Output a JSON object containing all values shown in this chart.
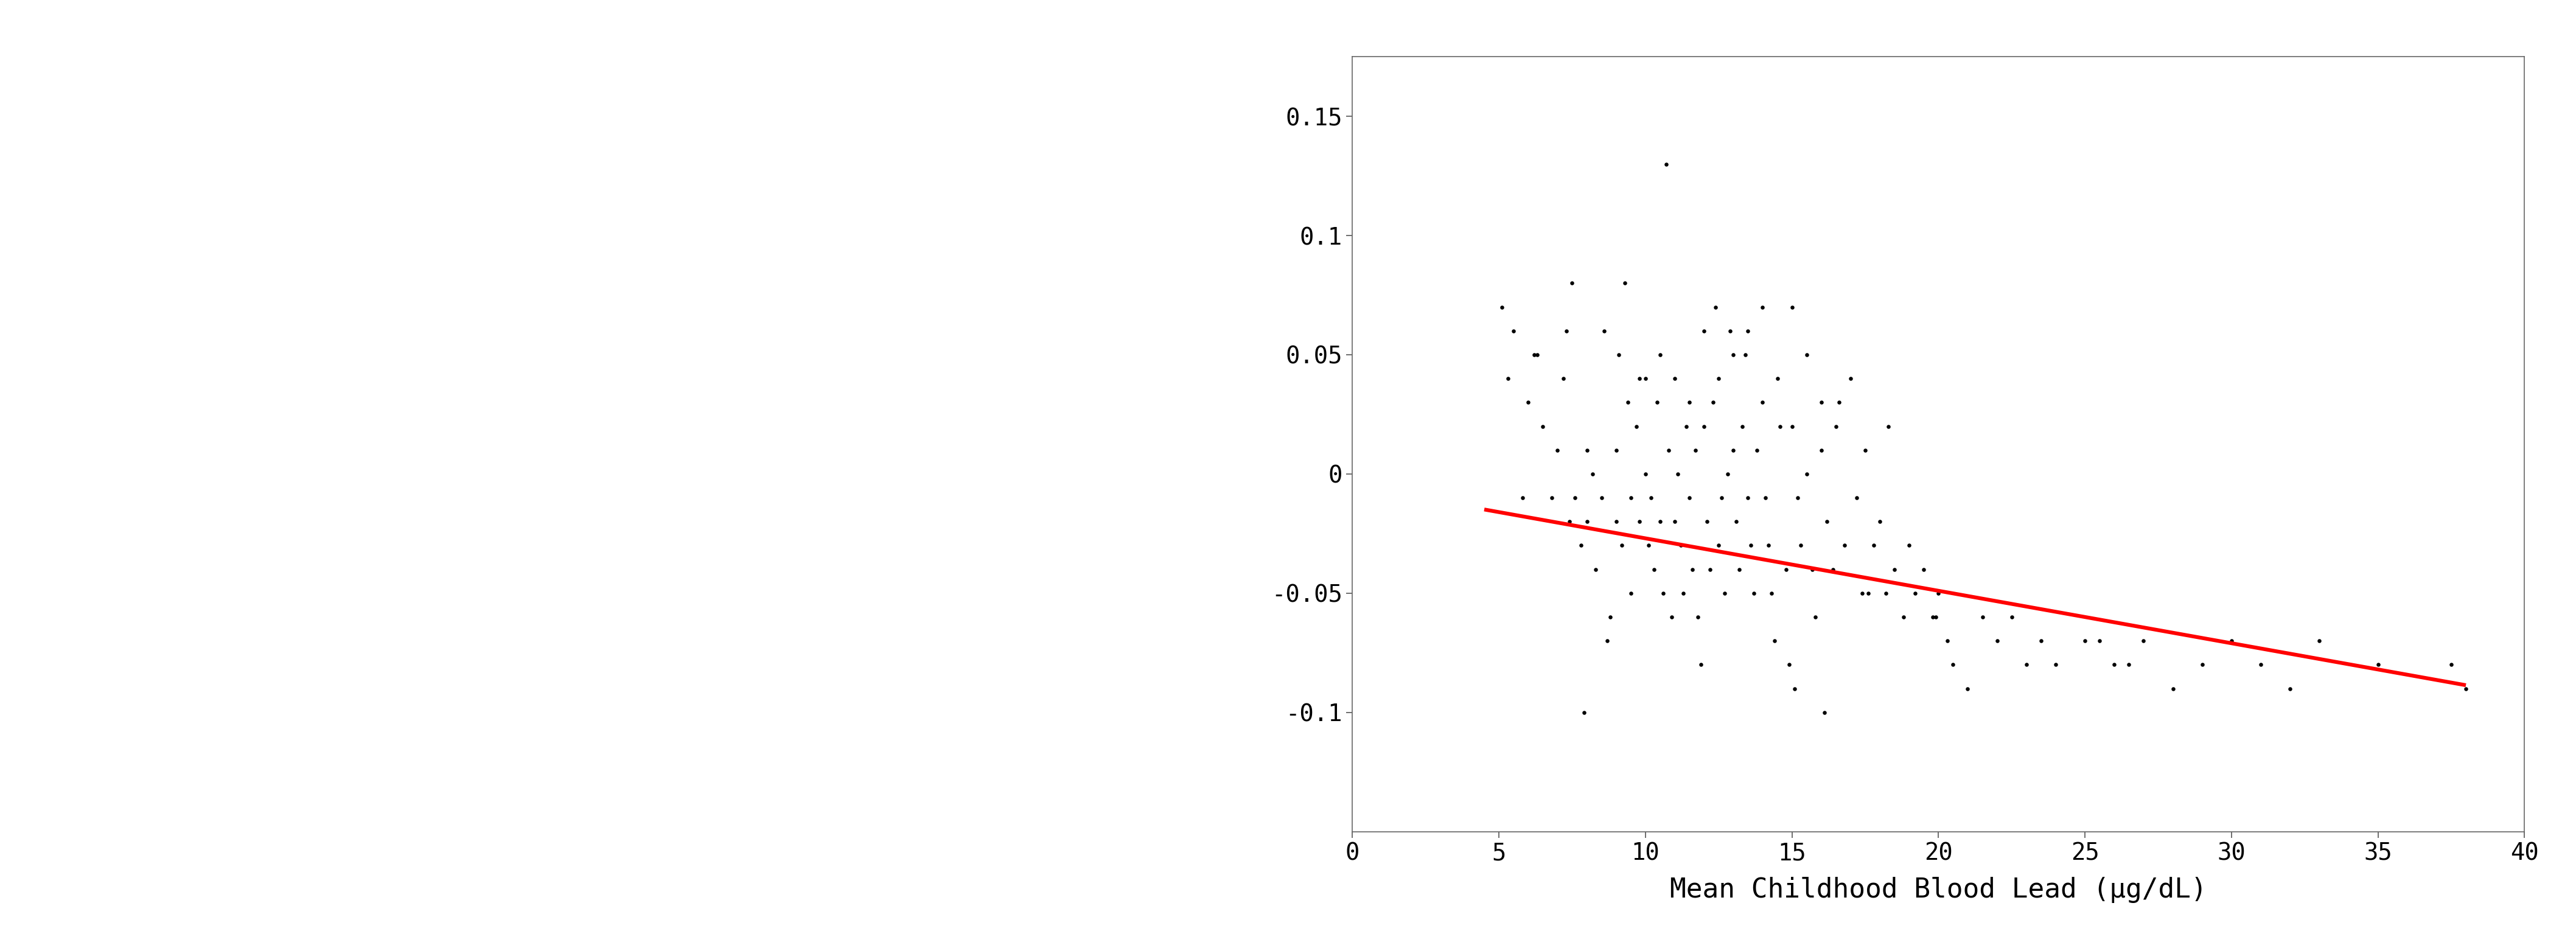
{
  "xlabel": "Mean Childhood Blood Lead (μg/dL)",
  "xlim": [
    0,
    40
  ],
  "ylim": [
    -0.15,
    0.175
  ],
  "xticks": [
    0,
    5,
    10,
    15,
    20,
    25,
    30,
    35,
    40
  ],
  "yticks": [
    -0.1,
    -0.05,
    0,
    0.05,
    0.1,
    0.15
  ],
  "scatter_color": "#000000",
  "line_color": "#ff0000",
  "bg_color": "#ffffff",
  "dot_size": 22,
  "line_width": 4.5,
  "line_x_start": 4.5,
  "line_x_end": 38.0,
  "line_intercept": -0.005,
  "line_slope": -0.0022,
  "font_family": "DejaVu Sans Mono",
  "tick_fontsize": 28,
  "label_fontsize": 32,
  "random_seed": 7,
  "scatter_x": [
    5.1,
    5.3,
    5.5,
    5.8,
    6.0,
    6.2,
    6.5,
    6.8,
    7.0,
    7.2,
    7.4,
    7.5,
    7.6,
    7.8,
    8.0,
    8.0,
    8.2,
    8.3,
    8.5,
    8.6,
    8.8,
    9.0,
    9.0,
    9.1,
    9.2,
    9.4,
    9.5,
    9.5,
    9.7,
    9.8,
    10.0,
    10.0,
    10.1,
    10.2,
    10.3,
    10.4,
    10.5,
    10.5,
    10.6,
    10.8,
    11.0,
    11.0,
    11.1,
    11.2,
    11.3,
    11.4,
    11.5,
    11.5,
    11.6,
    11.7,
    11.8,
    12.0,
    12.0,
    12.1,
    12.2,
    12.3,
    12.5,
    12.5,
    12.6,
    12.7,
    12.8,
    13.0,
    13.0,
    13.1,
    13.2,
    13.3,
    13.5,
    13.5,
    13.6,
    13.7,
    13.8,
    14.0,
    14.0,
    14.1,
    14.2,
    14.3,
    14.5,
    14.6,
    14.8,
    15.0,
    15.0,
    15.2,
    15.3,
    15.5,
    15.5,
    15.7,
    15.8,
    16.0,
    16.0,
    16.2,
    16.4,
    16.5,
    16.8,
    17.0,
    17.2,
    17.4,
    17.5,
    17.8,
    18.0,
    18.2,
    18.5,
    18.8,
    19.0,
    19.2,
    19.5,
    19.8,
    20.0,
    20.3,
    20.5,
    21.0,
    21.5,
    22.0,
    22.5,
    23.0,
    23.5,
    24.0,
    25.0,
    25.5,
    26.0,
    26.5,
    27.0,
    28.0,
    29.0,
    30.0,
    31.0,
    32.0,
    33.0,
    35.0,
    37.5,
    38.0,
    9.3,
    10.7,
    11.9,
    12.4,
    13.4,
    14.4,
    15.1,
    7.3,
    8.7,
    16.6,
    17.6,
    18.3,
    6.3,
    7.9,
    9.8,
    10.9,
    12.9,
    14.9,
    16.1,
    19.9
  ],
  "scatter_y": [
    0.07,
    0.04,
    0.06,
    -0.01,
    0.03,
    0.05,
    0.02,
    -0.01,
    0.01,
    0.04,
    -0.02,
    0.08,
    -0.01,
    -0.03,
    0.01,
    -0.02,
    0.0,
    -0.04,
    -0.01,
    0.06,
    -0.06,
    0.01,
    -0.02,
    0.05,
    -0.03,
    0.03,
    -0.01,
    -0.05,
    0.02,
    -0.02,
    0.04,
    0.0,
    -0.03,
    -0.01,
    -0.04,
    0.03,
    0.05,
    -0.02,
    -0.05,
    0.01,
    0.04,
    -0.02,
    0.0,
    -0.03,
    -0.05,
    0.02,
    0.03,
    -0.01,
    -0.04,
    0.01,
    -0.06,
    0.06,
    0.02,
    -0.02,
    -0.04,
    0.03,
    0.04,
    -0.03,
    -0.01,
    -0.05,
    0.0,
    0.05,
    0.01,
    -0.02,
    -0.04,
    0.02,
    0.06,
    -0.01,
    -0.03,
    -0.05,
    0.01,
    0.07,
    0.03,
    -0.01,
    -0.03,
    -0.05,
    0.04,
    0.02,
    -0.04,
    0.07,
    0.02,
    -0.01,
    -0.03,
    0.05,
    0.0,
    -0.04,
    -0.06,
    0.03,
    0.01,
    -0.02,
    -0.04,
    0.02,
    -0.03,
    0.04,
    -0.01,
    -0.05,
    0.01,
    -0.03,
    -0.02,
    -0.05,
    -0.04,
    -0.06,
    -0.03,
    -0.05,
    -0.04,
    -0.06,
    -0.05,
    -0.07,
    -0.08,
    -0.09,
    -0.06,
    -0.07,
    -0.06,
    -0.08,
    -0.07,
    -0.08,
    -0.07,
    -0.07,
    -0.08,
    -0.08,
    -0.07,
    -0.09,
    -0.08,
    -0.07,
    -0.08,
    -0.09,
    -0.07,
    -0.08,
    -0.08,
    -0.09,
    0.08,
    0.13,
    -0.08,
    0.07,
    0.05,
    -0.07,
    -0.09,
    0.06,
    -0.07,
    0.03,
    -0.05,
    0.02,
    0.05,
    -0.1,
    0.04,
    -0.06,
    0.06,
    -0.08,
    -0.1,
    -0.06
  ]
}
